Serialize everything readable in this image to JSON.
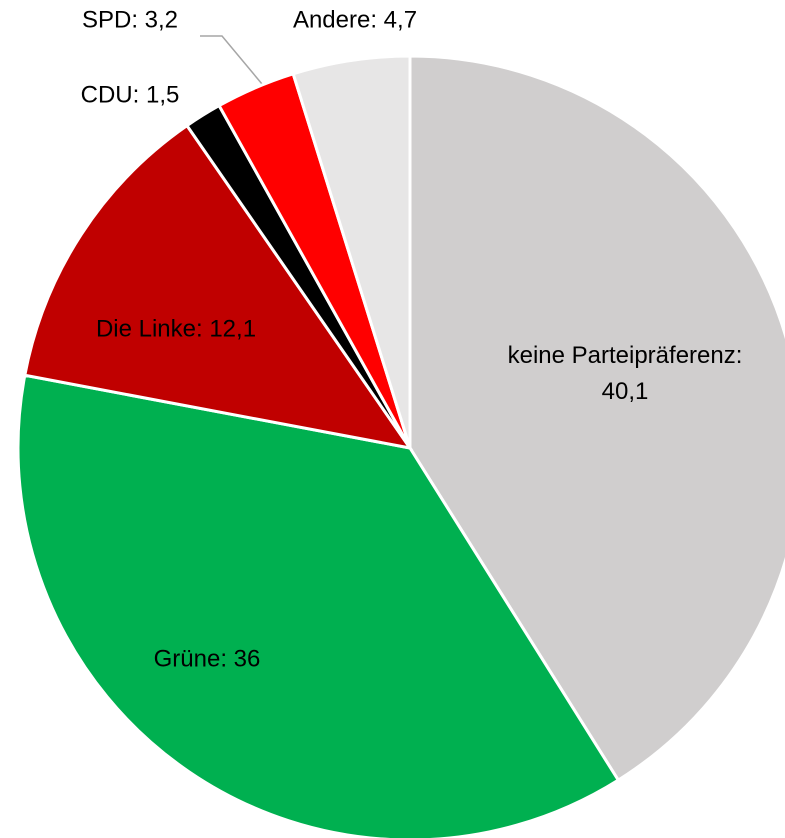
{
  "chart_data": {
    "type": "pie",
    "values": [
      40.1,
      36,
      12.1,
      1.5,
      3.2,
      4.7
    ],
    "value_labels": [
      "keine Parteipräferenz: 40,1",
      "Grüne: 36",
      "Die Linke: 12,1",
      "CDU: 1,5",
      "SPD: 3,2",
      "Andere: 4,7"
    ],
    "colors": [
      "#d0cece",
      "#00b050",
      "#c00000",
      "#000000",
      "#ff0000",
      "#e7e6e6"
    ]
  }
}
